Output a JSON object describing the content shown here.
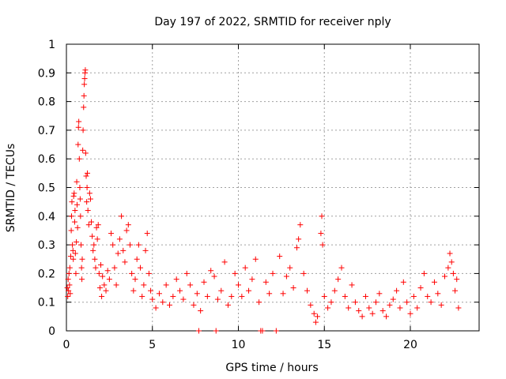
{
  "chart_data": {
    "type": "scatter",
    "title": "Day 197 of 2022, SRMTID for receiver nply",
    "xlabel": "GPS time / hours",
    "ylabel": "SRMTID / TECUs",
    "xlim": [
      0,
      24
    ],
    "ylim": [
      0,
      1
    ],
    "x_ticks": [
      0,
      5,
      10,
      15,
      20
    ],
    "y_ticks": [
      0,
      0.1,
      0.2,
      0.3,
      0.4,
      0.5,
      0.6,
      0.7,
      0.8,
      0.9,
      1
    ],
    "x_tick_labels": [
      "0",
      "5",
      "10",
      "15",
      "20"
    ],
    "y_tick_labels": [
      "0",
      "0.1",
      "0.2",
      "0.3",
      "0.4",
      "0.5",
      "0.6",
      "0.7",
      "0.8",
      "0.9",
      "1"
    ],
    "grid": true,
    "series_color": "#ff0000",
    "marker": "+",
    "series": [
      {
        "name": "SRMTID",
        "points": [
          [
            0.05,
            0.15
          ],
          [
            0.08,
            0.12
          ],
          [
            0.1,
            0.18
          ],
          [
            0.12,
            0.14
          ],
          [
            0.15,
            0.2
          ],
          [
            0.18,
            0.16
          ],
          [
            0.2,
            0.22
          ],
          [
            0.22,
            0.13
          ],
          [
            0.25,
            0.26
          ],
          [
            0.28,
            0.35
          ],
          [
            0.3,
            0.4
          ],
          [
            0.32,
            0.45
          ],
          [
            0.35,
            0.3
          ],
          [
            0.38,
            0.28
          ],
          [
            0.4,
            0.25
          ],
          [
            0.42,
            0.47
          ],
          [
            0.45,
            0.48
          ],
          [
            0.48,
            0.38
          ],
          [
            0.5,
            0.42
          ],
          [
            0.52,
            0.27
          ],
          [
            0.55,
            0.2
          ],
          [
            0.58,
            0.31
          ],
          [
            0.6,
            0.52
          ],
          [
            0.62,
            0.44
          ],
          [
            0.65,
            0.36
          ],
          [
            0.68,
            0.65
          ],
          [
            0.7,
            0.71
          ],
          [
            0.72,
            0.73
          ],
          [
            0.75,
            0.6
          ],
          [
            0.78,
            0.5
          ],
          [
            0.8,
            0.46
          ],
          [
            0.82,
            0.4
          ],
          [
            0.85,
            0.3
          ],
          [
            0.88,
            0.22
          ],
          [
            0.9,
            0.18
          ],
          [
            0.92,
            0.25
          ],
          [
            0.95,
            0.63
          ],
          [
            0.97,
            0.7
          ],
          [
            1.0,
            0.78
          ],
          [
            1.02,
            0.82
          ],
          [
            1.04,
            0.86
          ],
          [
            1.06,
            0.88
          ],
          [
            1.08,
            0.9
          ],
          [
            1.1,
            0.91
          ],
          [
            1.12,
            0.62
          ],
          [
            1.15,
            0.54
          ],
          [
            1.18,
            0.45
          ],
          [
            1.2,
            0.5
          ],
          [
            1.22,
            0.55
          ],
          [
            1.25,
            0.42
          ],
          [
            1.3,
            0.37
          ],
          [
            1.35,
            0.48
          ],
          [
            1.4,
            0.46
          ],
          [
            1.45,
            0.38
          ],
          [
            1.5,
            0.33
          ],
          [
            1.55,
            0.28
          ],
          [
            1.6,
            0.3
          ],
          [
            1.65,
            0.25
          ],
          [
            1.7,
            0.22
          ],
          [
            1.75,
            0.36
          ],
          [
            1.8,
            0.32
          ],
          [
            1.85,
            0.37
          ],
          [
            1.9,
            0.2
          ],
          [
            1.95,
            0.15
          ],
          [
            2.0,
            0.23
          ],
          [
            2.05,
            0.12
          ],
          [
            2.1,
            0.19
          ],
          [
            2.2,
            0.16
          ],
          [
            2.3,
            0.14
          ],
          [
            2.4,
            0.21
          ],
          [
            2.5,
            0.18
          ],
          [
            2.6,
            0.34
          ],
          [
            2.7,
            0.3
          ],
          [
            2.8,
            0.22
          ],
          [
            2.9,
            0.16
          ],
          [
            3.0,
            0.27
          ],
          [
            3.1,
            0.32
          ],
          [
            3.2,
            0.4
          ],
          [
            3.3,
            0.28
          ],
          [
            3.4,
            0.24
          ],
          [
            3.5,
            0.35
          ],
          [
            3.6,
            0.37
          ],
          [
            3.7,
            0.3
          ],
          [
            3.8,
            0.2
          ],
          [
            3.9,
            0.14
          ],
          [
            4.0,
            0.18
          ],
          [
            4.1,
            0.25
          ],
          [
            4.2,
            0.3
          ],
          [
            4.3,
            0.22
          ],
          [
            4.4,
            0.12
          ],
          [
            4.5,
            0.16
          ],
          [
            4.6,
            0.28
          ],
          [
            4.7,
            0.34
          ],
          [
            4.8,
            0.2
          ],
          [
            4.9,
            0.14
          ],
          [
            5.0,
            0.11
          ],
          [
            5.2,
            0.08
          ],
          [
            5.4,
            0.13
          ],
          [
            5.6,
            0.1
          ],
          [
            5.8,
            0.16
          ],
          [
            6.0,
            0.09
          ],
          [
            6.2,
            0.12
          ],
          [
            6.4,
            0.18
          ],
          [
            6.6,
            0.14
          ],
          [
            6.8,
            0.11
          ],
          [
            7.0,
            0.2
          ],
          [
            7.2,
            0.16
          ],
          [
            7.4,
            0.09
          ],
          [
            7.6,
            0.13
          ],
          [
            7.7,
            0.0
          ],
          [
            7.8,
            0.07
          ],
          [
            8.0,
            0.17
          ],
          [
            8.2,
            0.12
          ],
          [
            8.4,
            0.21
          ],
          [
            8.6,
            0.19
          ],
          [
            8.7,
            0.0
          ],
          [
            8.8,
            0.11
          ],
          [
            9.0,
            0.14
          ],
          [
            9.2,
            0.24
          ],
          [
            9.4,
            0.09
          ],
          [
            9.6,
            0.12
          ],
          [
            9.8,
            0.2
          ],
          [
            10.0,
            0.16
          ],
          [
            10.2,
            0.12
          ],
          [
            10.4,
            0.22
          ],
          [
            10.6,
            0.14
          ],
          [
            10.8,
            0.18
          ],
          [
            11.0,
            0.25
          ],
          [
            11.2,
            0.1
          ],
          [
            11.3,
            0.0
          ],
          [
            11.4,
            0.0
          ],
          [
            11.6,
            0.17
          ],
          [
            11.8,
            0.13
          ],
          [
            12.0,
            0.2
          ],
          [
            12.2,
            0.0
          ],
          [
            12.4,
            0.26
          ],
          [
            12.6,
            0.13
          ],
          [
            12.8,
            0.19
          ],
          [
            13.0,
            0.22
          ],
          [
            13.2,
            0.15
          ],
          [
            13.4,
            0.29
          ],
          [
            13.5,
            0.32
          ],
          [
            13.6,
            0.37
          ],
          [
            13.8,
            0.2
          ],
          [
            14.0,
            0.14
          ],
          [
            14.2,
            0.09
          ],
          [
            14.4,
            0.06
          ],
          [
            14.5,
            0.03
          ],
          [
            14.6,
            0.05
          ],
          [
            14.8,
            0.34
          ],
          [
            14.85,
            0.4
          ],
          [
            14.9,
            0.3
          ],
          [
            15.0,
            0.12
          ],
          [
            15.2,
            0.08
          ],
          [
            15.4,
            0.1
          ],
          [
            15.6,
            0.14
          ],
          [
            15.8,
            0.18
          ],
          [
            16.0,
            0.22
          ],
          [
            16.2,
            0.12
          ],
          [
            16.4,
            0.08
          ],
          [
            16.6,
            0.16
          ],
          [
            16.8,
            0.1
          ],
          [
            17.0,
            0.07
          ],
          [
            17.2,
            0.05
          ],
          [
            17.4,
            0.12
          ],
          [
            17.6,
            0.08
          ],
          [
            17.8,
            0.06
          ],
          [
            18.0,
            0.1
          ],
          [
            18.2,
            0.13
          ],
          [
            18.4,
            0.07
          ],
          [
            18.6,
            0.05
          ],
          [
            18.8,
            0.09
          ],
          [
            19.0,
            0.11
          ],
          [
            19.2,
            0.14
          ],
          [
            19.4,
            0.08
          ],
          [
            19.6,
            0.17
          ],
          [
            19.8,
            0.1
          ],
          [
            20.0,
            0.06
          ],
          [
            20.2,
            0.12
          ],
          [
            20.4,
            0.08
          ],
          [
            20.6,
            0.15
          ],
          [
            20.8,
            0.2
          ],
          [
            21.0,
            0.12
          ],
          [
            21.2,
            0.1
          ],
          [
            21.4,
            0.17
          ],
          [
            21.6,
            0.13
          ],
          [
            21.8,
            0.09
          ],
          [
            22.0,
            0.19
          ],
          [
            22.2,
            0.22
          ],
          [
            22.3,
            0.27
          ],
          [
            22.4,
            0.24
          ],
          [
            22.5,
            0.2
          ],
          [
            22.6,
            0.14
          ],
          [
            22.7,
            0.18
          ],
          [
            22.8,
            0.08
          ]
        ]
      }
    ]
  }
}
